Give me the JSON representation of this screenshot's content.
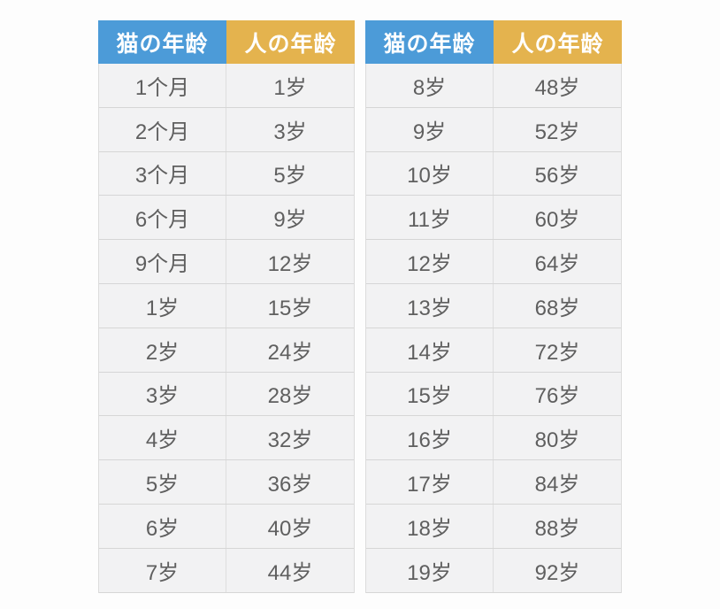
{
  "colors": {
    "cat_header_bg": "#4c9bd8",
    "human_header_bg": "#e4b34e",
    "header_text": "#ffffff",
    "row_bg": "#f2f2f3",
    "row_border": "#d6d6d6",
    "cell_text": "#5f5f5f",
    "page_bg": "#fdfdfd"
  },
  "chart_data": [
    {
      "type": "table",
      "columns": [
        "猫の年龄",
        "人の年龄"
      ],
      "rows": [
        [
          "1个月",
          "1岁"
        ],
        [
          "2个月",
          "3岁"
        ],
        [
          "3个月",
          "5岁"
        ],
        [
          "6个月",
          "9岁"
        ],
        [
          "9个月",
          "12岁"
        ],
        [
          "1岁",
          "15岁"
        ],
        [
          "2岁",
          "24岁"
        ],
        [
          "3岁",
          "28岁"
        ],
        [
          "4岁",
          "32岁"
        ],
        [
          "5岁",
          "36岁"
        ],
        [
          "6岁",
          "40岁"
        ],
        [
          "7岁",
          "44岁"
        ]
      ]
    },
    {
      "type": "table",
      "columns": [
        "猫の年龄",
        "人の年龄"
      ],
      "rows": [
        [
          "8岁",
          "48岁"
        ],
        [
          "9岁",
          "52岁"
        ],
        [
          "10岁",
          "56岁"
        ],
        [
          "11岁",
          "60岁"
        ],
        [
          "12岁",
          "64岁"
        ],
        [
          "13岁",
          "68岁"
        ],
        [
          "14岁",
          "72岁"
        ],
        [
          "15岁",
          "76岁"
        ],
        [
          "16岁",
          "80岁"
        ],
        [
          "17岁",
          "84岁"
        ],
        [
          "18岁",
          "88岁"
        ],
        [
          "19岁",
          "92岁"
        ]
      ]
    }
  ]
}
